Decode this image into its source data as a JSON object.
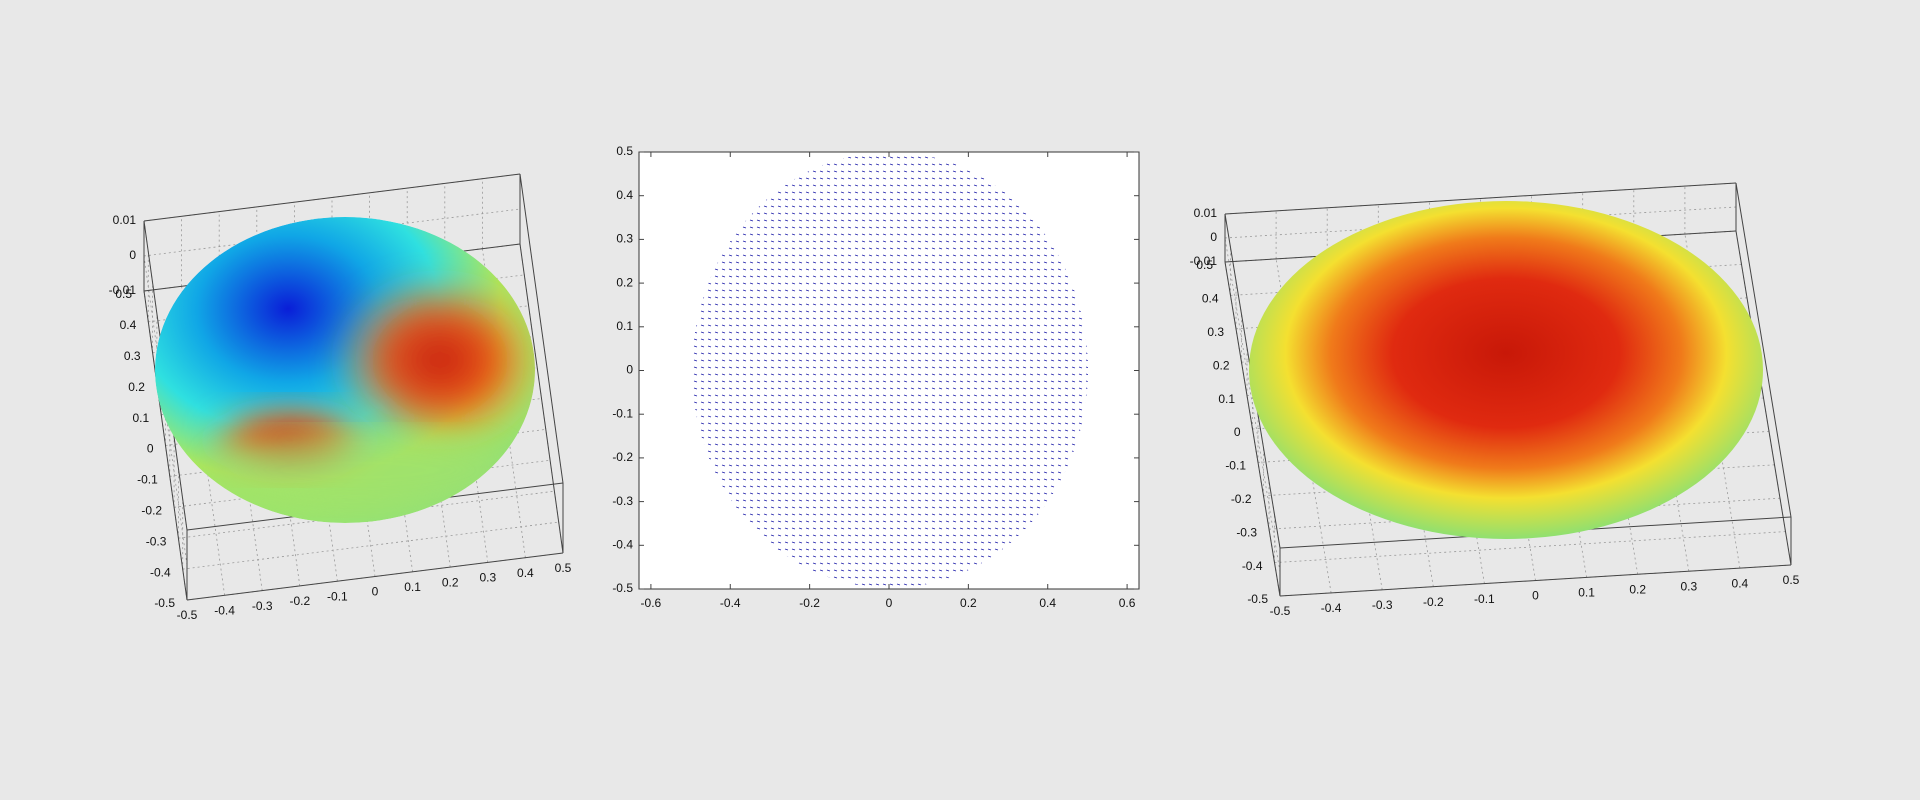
{
  "chart_data": [
    {
      "type": "surface3d",
      "xlim": [
        -0.5,
        0.5
      ],
      "ylim": [
        -0.5,
        0.5
      ],
      "zlim": [
        -0.01,
        0.01
      ],
      "xticks": [
        -0.5,
        -0.4,
        -0.3,
        -0.2,
        -0.1,
        0,
        0.1,
        0.2,
        0.3,
        0.4,
        0.5
      ],
      "yticks": [
        -0.5,
        -0.4,
        -0.3,
        -0.2,
        -0.1,
        0,
        0.1,
        0.2,
        0.3,
        0.4,
        0.5
      ],
      "zticks": [
        -0.01,
        0,
        0.01
      ]
    },
    {
      "type": "quiver",
      "color": "#1a1aa8",
      "xlim": [
        -0.63,
        0.63
      ],
      "ylim": [
        -0.5,
        0.5
      ],
      "xticks": [
        -0.6,
        -0.4,
        -0.2,
        0,
        0.2,
        0.4,
        0.6
      ],
      "yticks": [
        -0.5,
        -0.4,
        -0.3,
        -0.2,
        -0.1,
        0,
        0.1,
        0.2,
        0.3,
        0.4,
        0.5
      ]
    },
    {
      "type": "surface3d",
      "xlim": [
        -0.5,
        0.5
      ],
      "ylim": [
        -0.5,
        0.5
      ],
      "zlim": [
        -0.01,
        0.01
      ],
      "xticks": [
        -0.5,
        -0.4,
        -0.3,
        -0.2,
        -0.1,
        0,
        0.1,
        0.2,
        0.3,
        0.4,
        0.5
      ],
      "yticks": [
        -0.5,
        -0.4,
        -0.3,
        -0.2,
        -0.1,
        0,
        0.1,
        0.2,
        0.3,
        0.4,
        0.5
      ],
      "zticks": [
        -0.01,
        0,
        0.01
      ]
    }
  ]
}
